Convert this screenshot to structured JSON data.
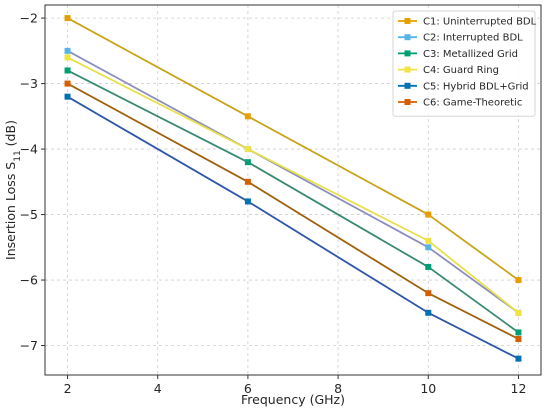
{
  "chart_data": {
    "type": "line",
    "xlabel": "Frequency (GHz)",
    "ylabel": "Insertion Loss S",
    "ylabel_subscript": "11",
    "ylabel_unit": " (dB)",
    "x": [
      2,
      6,
      10,
      12
    ],
    "xlim": [
      1.5,
      12.5
    ],
    "ylim": [
      -7.45,
      -1.8
    ],
    "xticks": [
      2,
      4,
      6,
      8,
      10,
      12
    ],
    "yticks": [
      -2,
      -3,
      -4,
      -5,
      -6,
      -7
    ],
    "xtick_labels": [
      "2",
      "4",
      "6",
      "8",
      "10",
      "12"
    ],
    "ytick_labels": [
      "−2",
      "−3",
      "−4",
      "−5",
      "−6",
      "−7"
    ],
    "grid": true,
    "legend_position": "top-right",
    "series": [
      {
        "name": "C1: Uninterrupted BDL",
        "values": [
          -2.0,
          -3.5,
          -5.0,
          -6.0
        ],
        "color": "#e69f00",
        "line_color": "#c9a41a"
      },
      {
        "name": "C2: Interrupted BDL",
        "values": [
          -2.5,
          -4.0,
          -5.5,
          -6.5
        ],
        "color": "#56b4e9",
        "line_color": "#8b8fc0"
      },
      {
        "name": "C3: Metallized Grid",
        "values": [
          -2.8,
          -4.2,
          -5.8,
          -6.8
        ],
        "color": "#009e73",
        "line_color": "#3a8a6e"
      },
      {
        "name": "C4: Guard Ring",
        "values": [
          -2.6,
          -4.0,
          -5.4,
          -6.5
        ],
        "color": "#f0e442",
        "line_color": "#e8e048"
      },
      {
        "name": "C5: Hybrid BDL+Grid",
        "values": [
          -3.2,
          -4.8,
          -6.5,
          -7.2
        ],
        "color": "#0072b2",
        "line_color": "#2f56a8"
      },
      {
        "name": "C6: Game-Theoretic",
        "values": [
          -3.0,
          -4.5,
          -6.2,
          -6.9
        ],
        "color": "#d55e00",
        "line_color": "#a0620e"
      }
    ]
  }
}
